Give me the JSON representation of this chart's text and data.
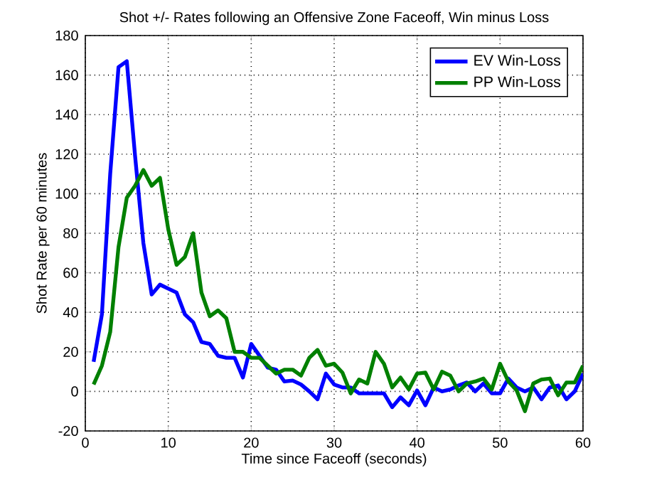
{
  "chart_data": {
    "type": "line",
    "title": "Shot +/- Rates following an Offensive Zone Faceoff, Win minus Loss",
    "xlabel": "Time since Faceoff (seconds)",
    "ylabel": "Shot Rate per 60 minutes",
    "x": [
      1,
      2,
      3,
      4,
      5,
      6,
      7,
      8,
      9,
      10,
      11,
      12,
      13,
      14,
      15,
      16,
      17,
      18,
      19,
      20,
      21,
      22,
      23,
      24,
      25,
      26,
      27,
      28,
      29,
      30,
      31,
      32,
      33,
      34,
      35,
      36,
      37,
      38,
      39,
      40,
      41,
      42,
      43,
      44,
      45,
      46,
      47,
      48,
      49,
      50,
      51,
      52,
      53,
      54,
      55,
      56,
      57,
      58,
      59,
      60
    ],
    "series": [
      {
        "name": "EV Win-Loss",
        "color": "#0000ff",
        "values": [
          15,
          39,
          110,
          164,
          167,
          119,
          75,
          49,
          54,
          52,
          50,
          39,
          35,
          25,
          24,
          18,
          17,
          17,
          7,
          24,
          18,
          12,
          11,
          5,
          5.5,
          3.5,
          0,
          -4,
          9,
          3.5,
          2,
          2,
          -1,
          -1,
          -1,
          -1,
          -8,
          -3,
          -7,
          0.5,
          -7,
          2,
          0,
          1,
          3,
          4.5,
          0,
          4,
          -1,
          -1,
          6.5,
          2,
          0,
          2,
          -4,
          2,
          3,
          -4,
          0,
          9
        ]
      },
      {
        "name": "PP Win-Loss",
        "color": "#008000",
        "values": [
          3.5,
          13,
          30,
          73,
          98,
          104,
          112,
          104,
          108,
          82,
          64,
          68,
          80,
          50,
          38,
          41,
          37,
          20,
          20,
          17,
          17,
          13,
          9,
          11,
          11,
          8,
          17,
          21,
          13,
          14,
          9.5,
          -1,
          6,
          4,
          20,
          14,
          2,
          7,
          1,
          9,
          9.5,
          1,
          10,
          8,
          0,
          4,
          5,
          6.5,
          1,
          14,
          5,
          0.5,
          -10,
          4,
          6,
          6.5,
          -2,
          4.5,
          4.5,
          13
        ]
      }
    ],
    "xlim": [
      0,
      60
    ],
    "ylim": [
      -20,
      180
    ],
    "xticks": [
      0,
      10,
      20,
      30,
      40,
      50,
      60
    ],
    "yticks": [
      -20,
      0,
      20,
      40,
      60,
      80,
      100,
      120,
      140,
      160,
      180
    ],
    "grid": true,
    "legend": "top right",
    "line_style": "solid",
    "marker": "none"
  }
}
